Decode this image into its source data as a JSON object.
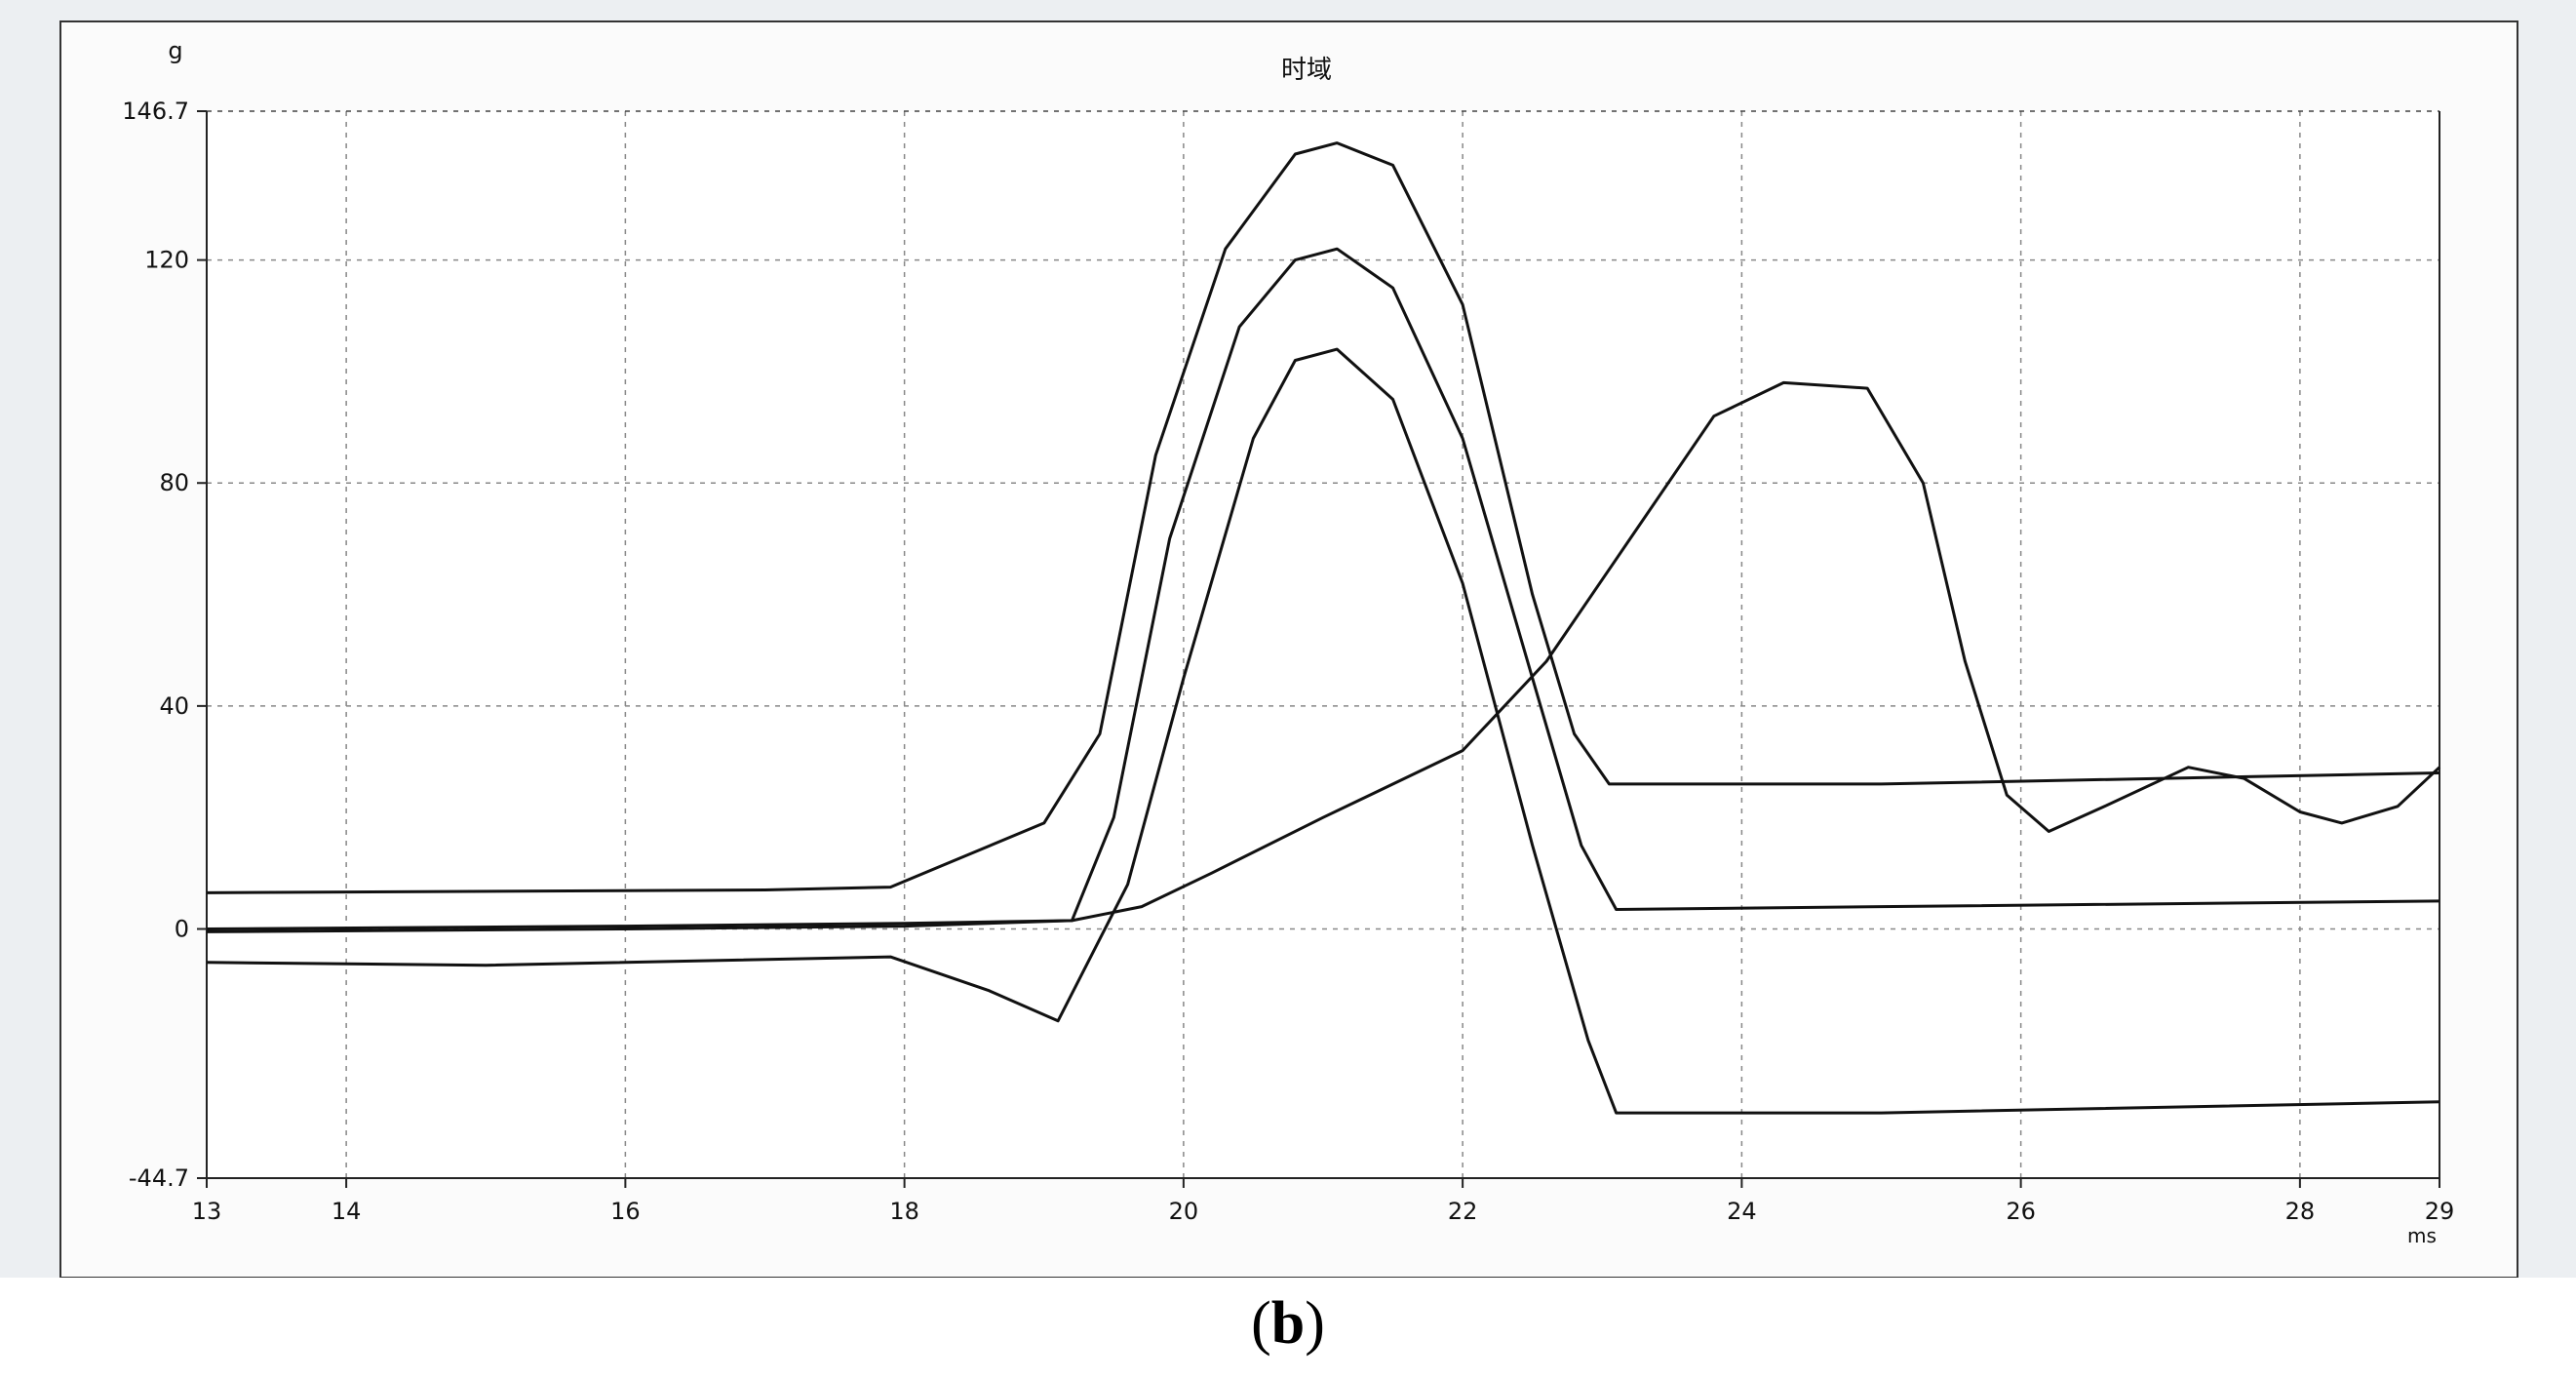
{
  "caption": {
    "open": "(",
    "letter": "b",
    "close": ")"
  },
  "chart_data": {
    "type": "line",
    "title": "时域",
    "ylabel": "g",
    "xlabel": "ms",
    "xlim": [
      13,
      29
    ],
    "ylim": [
      -44.7,
      146.7
    ],
    "x_ticks": [
      13,
      14,
      16,
      18,
      20,
      22,
      24,
      26,
      28,
      29
    ],
    "y_ticks": [
      146.7,
      120,
      80,
      40,
      0,
      -44.7
    ],
    "grid": true,
    "series": [
      {
        "points": [
          [
            13,
            6.5
          ],
          [
            17,
            7
          ],
          [
            17.9,
            7.5
          ],
          [
            19,
            19
          ],
          [
            19.4,
            35
          ],
          [
            19.8,
            85
          ],
          [
            20.3,
            122
          ],
          [
            20.8,
            139
          ],
          [
            21.1,
            141
          ],
          [
            21.5,
            137
          ],
          [
            22,
            112
          ],
          [
            22.5,
            60
          ],
          [
            22.8,
            35
          ],
          [
            23.05,
            26
          ],
          [
            25,
            26
          ],
          [
            29,
            28
          ]
        ]
      },
      {
        "points": [
          [
            13,
            0
          ],
          [
            16,
            0.5
          ],
          [
            18,
            1
          ],
          [
            19.2,
            1.5
          ],
          [
            19.5,
            20
          ],
          [
            19.9,
            70
          ],
          [
            20.4,
            108
          ],
          [
            20.8,
            120
          ],
          [
            21.1,
            122
          ],
          [
            21.5,
            115
          ],
          [
            22,
            88
          ],
          [
            22.5,
            45
          ],
          [
            22.85,
            15
          ],
          [
            23.1,
            3.5
          ],
          [
            25,
            4
          ],
          [
            29,
            5
          ]
        ]
      },
      {
        "points": [
          [
            13,
            -6
          ],
          [
            15,
            -6.5
          ],
          [
            17.9,
            -5
          ],
          [
            18.6,
            -11
          ],
          [
            19.1,
            -16.5
          ],
          [
            19.6,
            8
          ],
          [
            20,
            45
          ],
          [
            20.5,
            88
          ],
          [
            20.8,
            102
          ],
          [
            21.1,
            104
          ],
          [
            21.5,
            95
          ],
          [
            22,
            62
          ],
          [
            22.5,
            15
          ],
          [
            22.9,
            -20
          ],
          [
            23.1,
            -33
          ],
          [
            25,
            -33
          ],
          [
            29,
            -31
          ]
        ]
      },
      {
        "points": [
          [
            13,
            -0.5
          ],
          [
            16,
            0
          ],
          [
            18,
            0.5
          ],
          [
            19.2,
            1.5
          ],
          [
            19.7,
            4
          ],
          [
            20.2,
            10
          ],
          [
            21,
            20
          ],
          [
            22,
            32
          ],
          [
            22.6,
            48
          ],
          [
            23.2,
            70
          ],
          [
            23.8,
            92
          ],
          [
            24.3,
            98
          ],
          [
            24.9,
            97
          ],
          [
            25.3,
            80
          ],
          [
            25.6,
            48
          ],
          [
            25.9,
            24
          ],
          [
            26.2,
            17.5
          ],
          [
            26.6,
            22
          ],
          [
            27.2,
            29
          ],
          [
            27.6,
            27
          ],
          [
            28,
            21
          ],
          [
            28.3,
            19
          ],
          [
            28.7,
            22
          ],
          [
            29,
            29
          ]
        ]
      }
    ]
  }
}
